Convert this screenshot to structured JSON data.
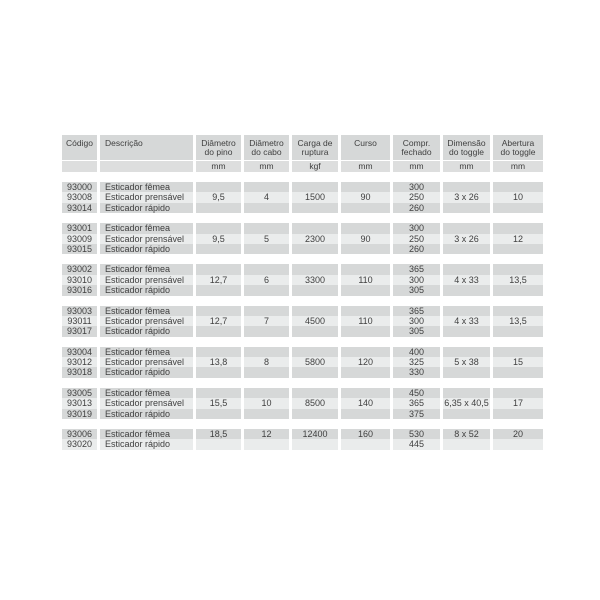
{
  "colors": {
    "row_gray": "#d6d8d8",
    "row_light": "#eaecec",
    "unit_row": "#dddede",
    "text": "#404040",
    "background": "#ffffff"
  },
  "table": {
    "columns": [
      {
        "id": "codigo",
        "label": [
          "Código"
        ],
        "unit": ""
      },
      {
        "id": "descricao",
        "label": [
          "Descrição"
        ],
        "unit": ""
      },
      {
        "id": "diametro-pino",
        "label": [
          "Diâmetro",
          "do pino"
        ],
        "unit": "mm"
      },
      {
        "id": "diametro-cabo",
        "label": [
          "Diâmetro",
          "do cabo"
        ],
        "unit": "mm"
      },
      {
        "id": "carga-ruptura",
        "label": [
          "Carga de",
          "ruptura"
        ],
        "unit": "kgf"
      },
      {
        "id": "curso",
        "label": [
          "Curso"
        ],
        "unit": "mm"
      },
      {
        "id": "compr-fechado",
        "label": [
          "Compr.",
          "fechado"
        ],
        "unit": "mm"
      },
      {
        "id": "dimensao-toggle",
        "label": [
          "Dimensão",
          "do toggle"
        ],
        "unit": "mm"
      },
      {
        "id": "abertura-toggle",
        "label": [
          "Abertura",
          "do toggle"
        ],
        "unit": "mm"
      }
    ],
    "groups": [
      {
        "rows": [
          [
            "93000",
            "Esticador fêmea",
            "",
            "",
            "",
            "",
            "300",
            "",
            ""
          ],
          [
            "93008",
            "Esticador prensável",
            "9,5",
            "4",
            "1500",
            "90",
            "250",
            "3 x 26",
            "10"
          ],
          [
            "93014",
            "Esticador rápido",
            "",
            "",
            "",
            "",
            "260",
            "",
            ""
          ]
        ]
      },
      {
        "rows": [
          [
            "93001",
            "Esticador fêmea",
            "",
            "",
            "",
            "",
            "300",
            "",
            ""
          ],
          [
            "93009",
            "Esticador prensável",
            "9,5",
            "5",
            "2300",
            "90",
            "250",
            "3 x 26",
            "12"
          ],
          [
            "93015",
            "Esticador rápido",
            "",
            "",
            "",
            "",
            "260",
            "",
            ""
          ]
        ]
      },
      {
        "rows": [
          [
            "93002",
            "Esticador fêmea",
            "",
            "",
            "",
            "",
            "365",
            "",
            ""
          ],
          [
            "93010",
            "Esticador prensável",
            "12,7",
            "6",
            "3300",
            "110",
            "300",
            "4 x 33",
            "13,5"
          ],
          [
            "93016",
            "Esticador rápido",
            "",
            "",
            "",
            "",
            "305",
            "",
            ""
          ]
        ]
      },
      {
        "rows": [
          [
            "93003",
            "Esticador fêmea",
            "",
            "",
            "",
            "",
            "365",
            "",
            ""
          ],
          [
            "93011",
            "Esticador prensável",
            "12,7",
            "7",
            "4500",
            "110",
            "300",
            "4 x 33",
            "13,5"
          ],
          [
            "93017",
            "Esticador rápido",
            "",
            "",
            "",
            "",
            "305",
            "",
            ""
          ]
        ]
      },
      {
        "rows": [
          [
            "93004",
            "Esticador fêmea",
            "",
            "",
            "",
            "",
            "400",
            "",
            ""
          ],
          [
            "93012",
            "Esticador prensável",
            "13,8",
            "8",
            "5800",
            "120",
            "325",
            "5 x 38",
            "15"
          ],
          [
            "93018",
            "Esticador rápido",
            "",
            "",
            "",
            "",
            "330",
            "",
            ""
          ]
        ]
      },
      {
        "rows": [
          [
            "93005",
            "Esticador fêmea",
            "",
            "",
            "",
            "",
            "450",
            "",
            ""
          ],
          [
            "93013",
            "Esticador prensável",
            "15,5",
            "10",
            "8500",
            "140",
            "365",
            "6,35 x 40,5",
            "17"
          ],
          [
            "93019",
            "Esticador rápido",
            "",
            "",
            "",
            "",
            "375",
            "",
            ""
          ]
        ]
      },
      {
        "rows": [
          [
            "93006",
            "Esticador fêmea",
            "18,5",
            "12",
            "12400",
            "160",
            "530",
            "8 x 52",
            "20"
          ],
          [
            "93020",
            "Esticador rápido",
            "",
            "",
            "",
            "",
            "445",
            "",
            ""
          ]
        ]
      }
    ]
  }
}
